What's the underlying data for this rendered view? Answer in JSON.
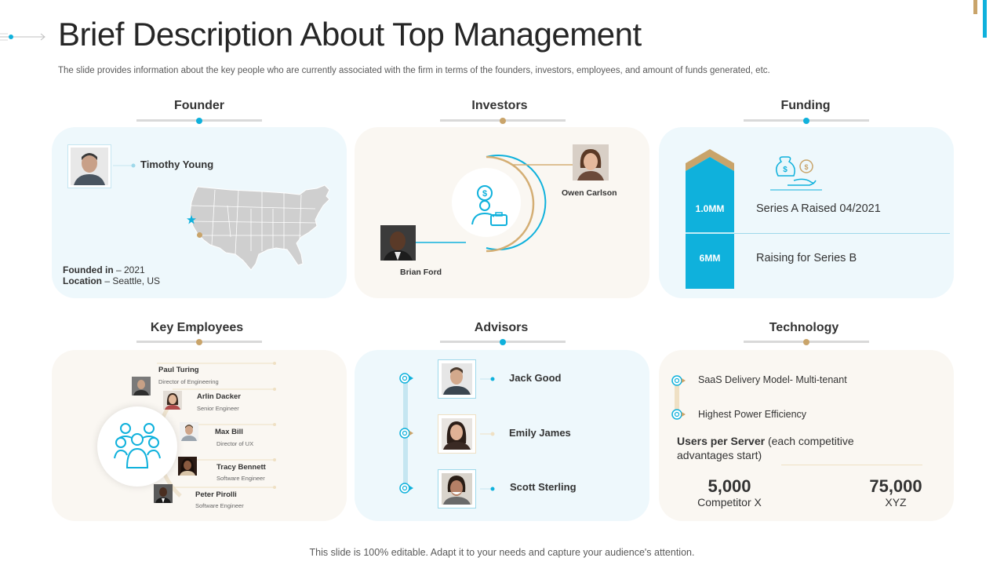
{
  "header": {
    "title": "Brief Description About Top Management",
    "subtitle": "The slide provides information about the key people who are currently associated with the firm in terms of the founders, investors, employees, and amount of funds generated, etc."
  },
  "footer": "This slide is 100% editable. Adapt it to your needs and capture your audience's attention.",
  "founder": {
    "heading": "Founder",
    "name": "Timothy Young",
    "founded_label": "Founded  in",
    "founded_value": " – 2021",
    "location_label": "Location",
    "location_value": " – Seattle, US"
  },
  "investors": {
    "heading": "Investors",
    "investor_1": "Owen Carlson",
    "investor_2": "Brian Ford"
  },
  "funding": {
    "heading": "Funding",
    "rows": [
      {
        "amount": "1.0MM",
        "text": "Series A  Raised 04/2021"
      },
      {
        "amount": "6MM",
        "text": "Raising for Series B"
      }
    ]
  },
  "key_employees": {
    "heading": "Key Employees",
    "people": [
      {
        "name": "Paul Turing",
        "role": "Director of Engineering"
      },
      {
        "name": "Arlin Dacker",
        "role": "Senior Engineer"
      },
      {
        "name": "Max Bill",
        "role": "Director of UX"
      },
      {
        "name": "Tracy Bennett",
        "role": "Software Engineer"
      },
      {
        "name": "Peter Pirolli",
        "role": "Software Engineer"
      }
    ]
  },
  "advisors": {
    "heading": "Advisors",
    "people": [
      "Jack Good",
      "Emily James",
      "Scott Sterling"
    ]
  },
  "technology": {
    "heading": "Technology",
    "items": [
      "SaaS Delivery  Model- Multi-tenant",
      "Highest Power Efficiency"
    ],
    "users_label": "Users per Server",
    "users_note": " (each competitive advantages start)",
    "stats": [
      {
        "value": "5,000",
        "label": "Competitor X"
      },
      {
        "value": "75,000",
        "label": "XYZ"
      }
    ]
  },
  "icons": [
    "arrow-right-icon",
    "person-avatar-icon",
    "us-map-icon",
    "investor-icon",
    "money-bag-icon",
    "team-icon",
    "target-icon"
  ],
  "colors": {
    "accent_blue": "#0fb1dc",
    "accent_gold": "#c9a46a",
    "panel_blue": "#eef8fc",
    "panel_beige": "#faf7f2"
  }
}
